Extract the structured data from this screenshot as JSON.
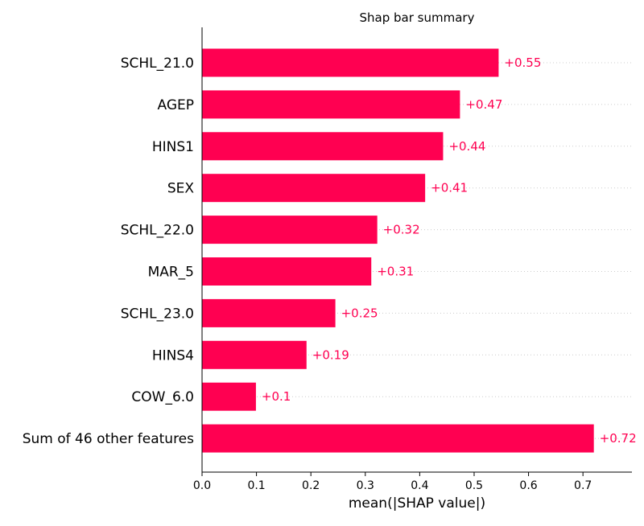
{
  "chart_data": {
    "type": "bar",
    "orientation": "horizontal",
    "title": "Shap bar summary",
    "xlabel": "mean(|SHAP value|)",
    "ylabel": "",
    "xlim": [
      0.0,
      0.79
    ],
    "xticks": [
      "0.0",
      "0.1",
      "0.2",
      "0.3",
      "0.4",
      "0.5",
      "0.6",
      "0.7"
    ],
    "categories": [
      "SCHL_21.0",
      "AGEP",
      "HINS1",
      "SEX",
      "SCHL_22.0",
      "MAR_5",
      "SCHL_23.0",
      "HINS4",
      "COW_6.0",
      "Sum of 46 other features"
    ],
    "values": [
      0.545,
      0.474,
      0.443,
      0.41,
      0.322,
      0.311,
      0.245,
      0.192,
      0.099,
      0.72
    ],
    "value_labels": [
      "+0.55",
      "+0.47",
      "+0.44",
      "+0.41",
      "+0.32",
      "+0.31",
      "+0.25",
      "+0.19",
      "+0.1",
      "+0.72"
    ],
    "bar_color": "#ff0051",
    "label_color": "#ff0051",
    "grid": "dotted row guides",
    "legend": "none"
  }
}
